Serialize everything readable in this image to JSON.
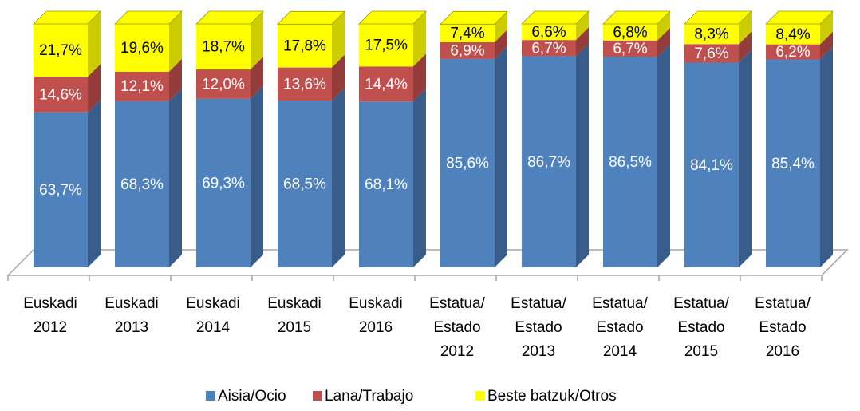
{
  "chart_data": {
    "type": "bar",
    "stacked": true,
    "categories": [
      [
        "Euskadi",
        "2012"
      ],
      [
        "Euskadi",
        "2013"
      ],
      [
        "Euskadi",
        "2014"
      ],
      [
        "Euskadi",
        "2015"
      ],
      [
        "Euskadi",
        "2016"
      ],
      [
        "Estatua/",
        "Estado",
        "2012"
      ],
      [
        "Estatua/",
        "Estado",
        "2013"
      ],
      [
        "Estatua/",
        "Estado",
        "2014"
      ],
      [
        "Estatua/",
        "Estado",
        "2015"
      ],
      [
        "Estatua/",
        "Estado",
        "2016"
      ]
    ],
    "ylim": [
      0,
      100
    ],
    "series": [
      {
        "name": "Aisia/Ocio",
        "color": "#4f81bd",
        "side_color": "#385d8a",
        "values": [
          63.7,
          68.3,
          69.3,
          68.5,
          68.1,
          85.6,
          86.7,
          86.5,
          84.1,
          85.4
        ],
        "value_labels": [
          "63,7%",
          "68,3%",
          "69,3%",
          "68,5%",
          "68,1%",
          "85,6%",
          "86,7%",
          "86,5%",
          "84,1%",
          "85,4%"
        ],
        "label_color": "#ffffff"
      },
      {
        "name": "Lana/Trabajo",
        "color": "#c0504d",
        "side_color": "#943c3a",
        "values": [
          14.6,
          12.1,
          12.0,
          13.6,
          14.4,
          6.9,
          6.7,
          6.7,
          7.6,
          6.2
        ],
        "value_labels": [
          "14,6%",
          "12,1%",
          "12,0%",
          "13,6%",
          "14,4%",
          "6,9%",
          "6,7%",
          "6,7%",
          "7,6%",
          "6,2%"
        ],
        "label_color": "#ffffff"
      },
      {
        "name": "Beste batzuk/Otros",
        "color": "#ffff00",
        "side_color": "#cccc00",
        "values": [
          21.7,
          19.6,
          18.7,
          17.8,
          17.5,
          7.4,
          6.6,
          6.8,
          8.3,
          8.4
        ],
        "value_labels": [
          "21,7%",
          "19,6%",
          "18,7%",
          "17,8%",
          "17,5%",
          "7,4%",
          "6,6%",
          "6,8%",
          "8,3%",
          "8,4%"
        ],
        "label_color": "#000000"
      }
    ],
    "legend": "bottom"
  }
}
